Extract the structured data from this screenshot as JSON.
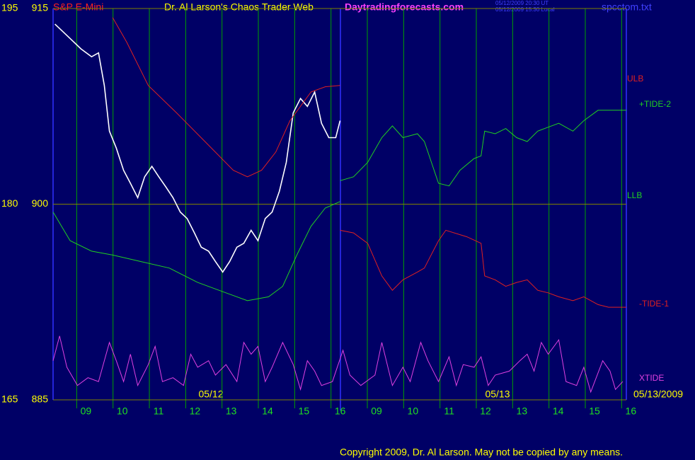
{
  "chart_data": {
    "type": "line",
    "title": "Dr. Al Larson's Chaos Trader Web",
    "instrument": "S&P E-Mini",
    "site": "Daytradingforecasts.com",
    "timestamps": [
      "05/12/2009 20:30 UT",
      "05/12/2009 15:30 Local"
    ],
    "file": "spcctom.txt",
    "copyright": "Copyright 2009, Dr. Al Larson. May not be copied by any means.",
    "date_labels": [
      "05/12",
      "05/13",
      "05/13/2009"
    ],
    "xlim": [
      -0.65,
      15.13
    ],
    "xticks": [
      {
        "value": 0,
        "label": "09"
      },
      {
        "value": 1,
        "label": "10"
      },
      {
        "value": 2,
        "label": "11"
      },
      {
        "value": 3,
        "label": "12"
      },
      {
        "value": 4,
        "label": "13"
      },
      {
        "value": 5,
        "label": "14"
      },
      {
        "value": 6,
        "label": "15"
      },
      {
        "value": 7,
        "label": "16"
      },
      {
        "value": 8,
        "label": "09"
      },
      {
        "value": 9,
        "label": "10"
      },
      {
        "value": 10,
        "label": "11"
      },
      {
        "value": 11,
        "label": "12"
      },
      {
        "value": 12,
        "label": "13"
      },
      {
        "value": 13,
        "label": "14"
      },
      {
        "value": 14,
        "label": "15"
      },
      {
        "value": 15,
        "label": "16"
      }
    ],
    "ylim": [
      885,
      915
    ],
    "yticks": [
      885,
      900,
      915
    ],
    "y2lim": [
      165,
      195
    ],
    "y2ticks": [
      165,
      180,
      195
    ],
    "grid": true,
    "series": [
      {
        "color": "#ffffff",
        "x": [
          -0.6,
          -0.37,
          -0.18,
          0.12,
          0.41,
          0.6,
          0.76,
          0.9,
          1.09,
          1.29,
          1.48,
          1.68,
          1.87,
          2.07,
          2.26,
          2.46,
          2.65,
          2.85,
          3.04,
          3.24,
          3.43,
          3.63,
          3.82,
          4.02,
          4.21,
          4.41,
          4.6,
          4.8,
          4.99,
          5.19,
          5.38,
          5.58,
          5.77,
          5.96,
          6.16,
          6.35,
          6.55,
          6.74,
          6.94,
          7.13,
          7.25
        ],
        "values": [
          913.8,
          913.2,
          912.7,
          911.9,
          911.3,
          911.6,
          909.1,
          905.6,
          904.3,
          902.6,
          901.6,
          900.5,
          902.1,
          902.9,
          902.1,
          901.3,
          900.5,
          899.4,
          898.9,
          897.8,
          896.7,
          896.4,
          895.6,
          894.8,
          895.6,
          896.7,
          897.0,
          898.0,
          897.2,
          898.9,
          899.4,
          901.0,
          903.2,
          907.0,
          908.1,
          907.5,
          908.6,
          906.2,
          905.1,
          905.1,
          906.4
        ]
      },
      {
        "name": "ULB",
        "color": "#e02020",
        "x": [
          0.99,
          1.38,
          1.97,
          2.75,
          3.53,
          4.31,
          4.7,
          5.09,
          5.48,
          5.87,
          6.45,
          6.84,
          7.25
        ],
        "values": [
          914.3,
          912.4,
          909.1,
          907.0,
          904.8,
          902.6,
          902.1,
          902.6,
          904.0,
          906.4,
          908.6,
          909.0,
          909.1
        ]
      },
      {
        "name": "+TIDE-2",
        "color": "#20d020",
        "x": [
          7.25,
          7.62,
          8.01,
          8.4,
          8.69,
          8.98,
          9.38,
          9.57,
          9.96,
          10.25,
          10.55,
          10.94,
          11.13,
          11.23,
          11.52,
          11.81,
          12.11,
          12.4,
          12.69,
          12.98,
          13.27,
          13.66,
          13.96,
          14.35,
          14.64,
          15.13
        ],
        "values": [
          901.8,
          902.1,
          903.2,
          905.1,
          906.0,
          905.1,
          905.4,
          904.8,
          901.6,
          901.4,
          902.6,
          903.5,
          903.7,
          905.6,
          905.4,
          905.8,
          905.1,
          904.8,
          905.6,
          905.9,
          906.2,
          905.6,
          906.4,
          907.2,
          907.2,
          907.2
        ]
      },
      {
        "name": "LLB",
        "color": "#20d020",
        "x": [
          -0.65,
          -0.18,
          0.41,
          0.99,
          1.77,
          2.55,
          3.33,
          4.11,
          4.7,
          5.28,
          5.67,
          6.06,
          6.45,
          6.84,
          7.25
        ],
        "values": [
          899.4,
          897.2,
          896.4,
          896.1,
          895.6,
          895.1,
          894.0,
          893.2,
          892.6,
          892.9,
          893.7,
          896.1,
          898.3,
          899.7,
          900.2
        ]
      },
      {
        "name": "-TIDE-1",
        "color": "#e02020",
        "x": [
          7.25,
          7.62,
          8.01,
          8.4,
          8.69,
          8.98,
          9.38,
          9.57,
          9.96,
          10.16,
          10.74,
          11.13,
          11.23,
          11.52,
          11.81,
          12.11,
          12.4,
          12.69,
          12.98,
          13.27,
          13.66,
          13.96,
          14.35,
          14.64,
          15.13
        ],
        "values": [
          898.0,
          897.8,
          897.0,
          894.5,
          893.4,
          894.2,
          894.8,
          895.1,
          897.2,
          898.0,
          897.5,
          897.0,
          894.5,
          894.2,
          893.7,
          894.0,
          894.2,
          893.4,
          893.2,
          892.9,
          892.6,
          892.9,
          892.3,
          892.1,
          892.1
        ]
      },
      {
        "name": "XTIDE",
        "color": "#e040e0",
        "x": [
          -0.65,
          -0.47,
          -0.27,
          0.02,
          0.31,
          0.6,
          0.9,
          1.09,
          1.29,
          1.48,
          1.68,
          1.97,
          2.16,
          2.36,
          2.65,
          2.94,
          3.14,
          3.33,
          3.63,
          3.82,
          4.11,
          4.41,
          4.6,
          4.8,
          4.99,
          5.19,
          5.38,
          5.67,
          5.96,
          6.16,
          6.35,
          6.55,
          6.74,
          7.04,
          7.33,
          7.52,
          7.82,
          8.21,
          8.4,
          8.69,
          8.98,
          9.18,
          9.47,
          9.67,
          9.96,
          10.25,
          10.45,
          10.64,
          10.94,
          11.13,
          11.33,
          11.52,
          11.91,
          12.2,
          12.4,
          12.59,
          12.79,
          12.98,
          13.27,
          13.47,
          13.76,
          13.96,
          14.15,
          14.48,
          14.68,
          14.83,
          15.03
        ],
        "values": [
          888.0,
          889.9,
          887.5,
          886.1,
          886.7,
          886.4,
          889.4,
          888.0,
          886.4,
          888.5,
          886.1,
          887.7,
          889.1,
          886.4,
          886.7,
          886.1,
          888.5,
          887.5,
          888.0,
          886.9,
          887.7,
          886.4,
          889.4,
          888.5,
          889.1,
          886.4,
          887.5,
          889.4,
          887.7,
          885.8,
          888.0,
          887.2,
          886.1,
          886.4,
          888.8,
          886.9,
          886.1,
          886.9,
          889.4,
          886.1,
          887.5,
          886.4,
          889.4,
          888.0,
          886.4,
          888.3,
          886.1,
          887.7,
          887.5,
          888.3,
          886.1,
          886.9,
          887.2,
          888.0,
          888.5,
          887.2,
          889.4,
          888.5,
          889.6,
          886.4,
          886.1,
          887.5,
          885.6,
          888.0,
          887.2,
          885.8,
          886.4
        ]
      }
    ]
  }
}
